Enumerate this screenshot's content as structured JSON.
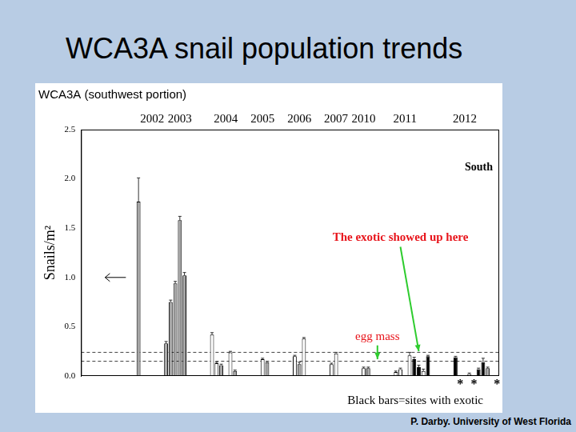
{
  "slide": {
    "title": "WCA3A snail population trends",
    "footer": "P. Darby. University of West Florida"
  },
  "chart_data": {
    "type": "bar",
    "title": "WCA3A (southwest portion)",
    "ylabel": "Snails/m²",
    "panel_label": "South",
    "caption": "Black bars=sites with exotic",
    "categories": [
      null,
      null,
      null,
      null,
      null,
      null,
      null,
      null,
      null,
      null,
      null,
      null,
      null,
      null,
      null,
      "2002",
      null,
      null,
      null,
      null,
      null,
      "2003",
      null,
      null,
      null,
      null,
      null,
      null,
      null,
      null,
      null,
      "2004",
      null,
      null,
      null,
      null,
      null,
      null,
      null,
      "2005",
      null,
      null,
      null,
      null,
      null,
      null,
      null,
      "2006",
      null,
      null,
      null,
      null,
      null,
      null,
      null,
      "2007",
      null,
      null,
      null,
      null,
      null,
      "2010",
      null,
      null,
      null,
      null,
      null,
      null,
      null,
      null,
      "2011",
      null,
      null,
      null,
      null,
      null,
      null,
      null,
      null,
      null,
      null,
      null,
      null,
      "2012",
      null,
      null,
      null,
      null,
      null,
      null,
      null
    ],
    "values": [
      null,
      null,
      null,
      null,
      null,
      null,
      null,
      null,
      null,
      null,
      null,
      null,
      1.77,
      null,
      null,
      null,
      null,
      null,
      0.33,
      0.75,
      0.94,
      1.58,
      1.02,
      null,
      null,
      null,
      null,
      null,
      0.42,
      0.13,
      0.11,
      null,
      0.24,
      0.05,
      null,
      null,
      null,
      null,
      null,
      0.17,
      0.14,
      null,
      null,
      null,
      null,
      null,
      0.2,
      0.12,
      0.38,
      null,
      null,
      null,
      null,
      null,
      0.12,
      0.23,
      null,
      null,
      null,
      null,
      null,
      0.08,
      0.08,
      null,
      null,
      null,
      null,
      null,
      0.04,
      0.07,
      null,
      0.21,
      0.17,
      0.09,
      0.05,
      0.2,
      null,
      null,
      null,
      null,
      null,
      0.19,
      null,
      null,
      0.02,
      null,
      0.07,
      0.14,
      0.08,
      null,
      null
    ],
    "errors": [
      null,
      null,
      null,
      null,
      null,
      null,
      null,
      null,
      null,
      null,
      null,
      null,
      0.24,
      null,
      null,
      null,
      null,
      null,
      0.02,
      0.02,
      0.02,
      0.04,
      0.03,
      null,
      null,
      null,
      null,
      null,
      0.02,
      0.01,
      0.01,
      null,
      0.01,
      0.01,
      null,
      null,
      null,
      null,
      null,
      0.01,
      0.01,
      null,
      null,
      null,
      null,
      null,
      0.01,
      0.02,
      0.01,
      null,
      null,
      null,
      null,
      null,
      0.01,
      0.01,
      null,
      null,
      null,
      null,
      null,
      0.01,
      0.01,
      null,
      null,
      null,
      null,
      null,
      0.01,
      0.01,
      null,
      0.03,
      0.02,
      0.02,
      0.02,
      0.01,
      null,
      null,
      null,
      null,
      null,
      0.01,
      null,
      null,
      0.01,
      null,
      0.01,
      0.04,
      0.01,
      null,
      null
    ],
    "colors": [
      null,
      null,
      null,
      null,
      null,
      null,
      null,
      null,
      null,
      null,
      null,
      null,
      "#a6a6a6",
      null,
      null,
      null,
      null,
      null,
      "#a6a6a6",
      "#a6a6a6",
      "#a6a6a6",
      "#a6a6a6",
      "#a6a6a6",
      null,
      null,
      null,
      null,
      null,
      "#ffffff",
      "#ffffff",
      "#a6a6a6",
      null,
      "#ffffff",
      "#a6a6a6",
      null,
      null,
      null,
      null,
      null,
      "#ffffff",
      "#a6a6a6",
      null,
      null,
      null,
      null,
      null,
      "#ffffff",
      "#a6a6a6",
      "#ffffff",
      null,
      null,
      null,
      null,
      null,
      "#ffffff",
      "#ffffff",
      null,
      null,
      null,
      null,
      null,
      "#ffffff",
      "#a6a6a6",
      null,
      null,
      null,
      null,
      null,
      "#ffffff",
      "#ffffff",
      null,
      "#ffffff",
      "#000000",
      "#000000",
      "#ffffff",
      "#000000",
      null,
      null,
      null,
      null,
      null,
      "#000000",
      null,
      null,
      "#ffffff",
      null,
      "#000000",
      "#000000",
      "#a6a6a6",
      null,
      null
    ],
    "ylim": [
      0,
      2.5
    ],
    "yticks": [
      {
        "value": 0,
        "label": "0.0"
      },
      {
        "value": 0.5,
        "label": "0.5"
      },
      {
        "value": 1,
        "label": "1.0"
      },
      {
        "value": 1.5,
        "label": "1.5"
      },
      {
        "value": 2,
        "label": "2.0"
      },
      {
        "value": 2.5,
        "label": "2.5"
      }
    ],
    "grid": false,
    "legend": "none",
    "reference_lines": [
      0.24,
      0.15
    ],
    "y_marker": 1.0,
    "star_marks": {
      "text": "*",
      "at": [
        82,
        85,
        90
      ]
    },
    "annotations": [
      {
        "text": "The exotic showed up here",
        "x": 69,
        "y": 1.4,
        "arrow_to": [
          73,
          0.25
        ],
        "color": "#e8141b"
      },
      {
        "text": "egg mass",
        "x": 64,
        "y": 0.4,
        "arrow_to": [
          64,
          0.17
        ],
        "color": "#e8141b"
      }
    ]
  }
}
